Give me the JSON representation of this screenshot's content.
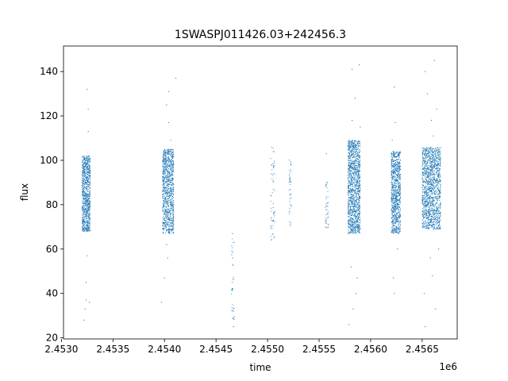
{
  "chart_data": {
    "type": "scatter",
    "title": "1SWASPJ011426.03+242456.3",
    "xlabel": "time",
    "ylabel": "flux",
    "x_offset_label": "1e6",
    "xlim": [
      2.45302,
      2.45684
    ],
    "ylim": [
      19.5,
      151.5
    ],
    "x_ticks": [
      2.453,
      2.4535,
      2.454,
      2.4545,
      2.455,
      2.4555,
      2.456,
      2.4565
    ],
    "x_tick_labels": [
      "2.4530",
      "2.4535",
      "2.4540",
      "2.4545",
      "2.4550",
      "2.4555",
      "2.4560",
      "2.4565"
    ],
    "y_ticks": [
      20,
      40,
      60,
      80,
      100,
      120,
      140
    ],
    "y_tick_labels": [
      "20",
      "40",
      "60",
      "80",
      "100",
      "120",
      "140"
    ],
    "grid": false,
    "legend": "none",
    "series_color": "#1f77b4",
    "clusters": [
      {
        "x": [
          2.4532,
          2.45328
        ],
        "y_low": 68,
        "y_high": 102,
        "density": 900,
        "outliers": [
          [
            2.45325,
            132
          ],
          [
            2.45326,
            123
          ],
          [
            2.45326,
            113
          ],
          [
            2.45324,
            37
          ],
          [
            2.45322,
            28
          ],
          [
            2.45323,
            33
          ],
          [
            2.45325,
            57
          ],
          [
            2.45324,
            45
          ],
          [
            2.45327,
            36
          ]
        ]
      },
      {
        "x": [
          2.45398,
          2.45409
        ],
        "y_low": 67,
        "y_high": 105,
        "density": 1000,
        "outliers": [
          [
            2.45404,
            131
          ],
          [
            2.45402,
            125
          ],
          [
            2.45404,
            117
          ],
          [
            2.45411,
            137
          ],
          [
            2.454,
            47
          ],
          [
            2.45403,
            56
          ],
          [
            2.45397,
            36
          ],
          [
            2.45402,
            62
          ],
          [
            2.45406,
            109
          ]
        ]
      },
      {
        "x": [
          2.45465,
          2.45468
        ],
        "y_low": 24,
        "y_high": 67,
        "density": 30,
        "outliers": [
          [
            2.45466,
            67
          ],
          [
            2.45466,
            56
          ],
          [
            2.45466,
            42
          ],
          [
            2.45467,
            32
          ],
          [
            2.45467,
            29
          ],
          [
            2.45467,
            25
          ]
        ]
      },
      {
        "x": [
          2.45503,
          2.45507
        ],
        "y_low": 64,
        "y_high": 106,
        "density": 60,
        "outliers": []
      },
      {
        "x": [
          2.45521,
          2.45523
        ],
        "y_low": 70,
        "y_high": 101,
        "density": 40,
        "outliers": []
      },
      {
        "x": [
          2.45556,
          2.45559
        ],
        "y_low": 69,
        "y_high": 90,
        "density": 40,
        "outliers": [
          [
            2.45557,
            103
          ]
        ]
      },
      {
        "x": [
          2.45578,
          2.4559
        ],
        "y_low": 67,
        "y_high": 109,
        "density": 1300,
        "outliers": [
          [
            2.45582,
            141
          ],
          [
            2.45589,
            143
          ],
          [
            2.45585,
            128
          ],
          [
            2.45581,
            52
          ],
          [
            2.45583,
            33
          ],
          [
            2.45579,
            26
          ],
          [
            2.45586,
            40
          ],
          [
            2.45587,
            47
          ],
          [
            2.45582,
            118
          ],
          [
            2.4559,
            115
          ]
        ]
      },
      {
        "x": [
          2.4562,
          2.45629
        ],
        "y_low": 67,
        "y_high": 104,
        "density": 900,
        "outliers": [
          [
            2.45623,
            133
          ],
          [
            2.45624,
            117
          ],
          [
            2.45622,
            47
          ],
          [
            2.45623,
            40
          ],
          [
            2.45626,
            60
          ],
          [
            2.45621,
            109
          ]
        ]
      },
      {
        "x": [
          2.4565,
          2.45668
        ],
        "y_low": 69,
        "y_high": 106,
        "density": 1400,
        "outliers": [
          [
            2.45662,
            145
          ],
          [
            2.45653,
            140
          ],
          [
            2.45655,
            130
          ],
          [
            2.45664,
            123
          ],
          [
            2.45659,
            118
          ],
          [
            2.4566,
            48
          ],
          [
            2.45663,
            33
          ],
          [
            2.45653,
            25
          ],
          [
            2.45652,
            40
          ],
          [
            2.45658,
            56
          ],
          [
            2.45666,
            60
          ],
          [
            2.45661,
            111
          ]
        ]
      }
    ]
  }
}
